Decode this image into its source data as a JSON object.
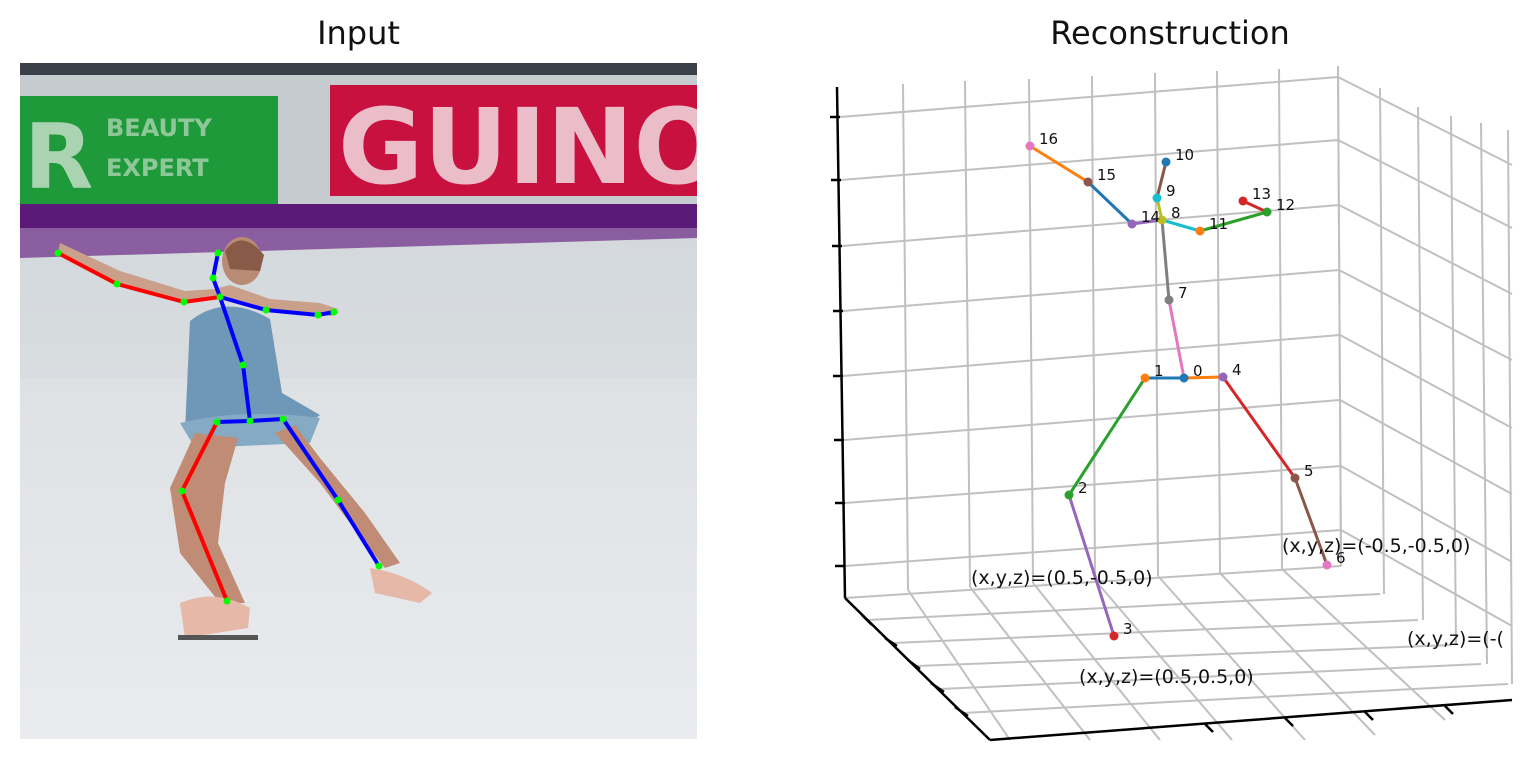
{
  "titles": {
    "left": "Input",
    "right": "Reconstruction"
  },
  "banner": {
    "left_text": "R",
    "left_small": [
      "BEAUTY",
      "EXPERT"
    ],
    "right_text": "GUINO"
  },
  "skeleton2d": {
    "right_color": "#ff0000",
    "left_color": "#0000ff",
    "joint_color": "#00ff00"
  },
  "reconstruction": {
    "joints": [
      {
        "id": "0",
        "color": "#1f77b4"
      },
      {
        "id": "1",
        "color": "#ff7f0e"
      },
      {
        "id": "2",
        "color": "#2ca02c"
      },
      {
        "id": "3",
        "color": "#d62728"
      },
      {
        "id": "4",
        "color": "#9467bd"
      },
      {
        "id": "5",
        "color": "#8c564b"
      },
      {
        "id": "6",
        "color": "#e377c2"
      },
      {
        "id": "7",
        "color": "#7f7f7f"
      },
      {
        "id": "8",
        "color": "#bcbd22"
      },
      {
        "id": "9",
        "color": "#17becf"
      },
      {
        "id": "10",
        "color": "#1f77b4"
      },
      {
        "id": "11",
        "color": "#ff7f0e"
      },
      {
        "id": "12",
        "color": "#2ca02c"
      },
      {
        "id": "13",
        "color": "#d62728"
      },
      {
        "id": "14",
        "color": "#9467bd"
      },
      {
        "id": "15",
        "color": "#8c564b"
      },
      {
        "id": "16",
        "color": "#e377c2"
      }
    ],
    "bones": [
      {
        "from": "0",
        "to": "1",
        "color": "#1f77b4"
      },
      {
        "from": "1",
        "to": "2",
        "color": "#2ca02c"
      },
      {
        "from": "2",
        "to": "3",
        "color": "#9467bd"
      },
      {
        "from": "0",
        "to": "4",
        "color": "#ff7f0e"
      },
      {
        "from": "4",
        "to": "5",
        "color": "#d62728"
      },
      {
        "from": "5",
        "to": "6",
        "color": "#8c564b"
      },
      {
        "from": "0",
        "to": "7",
        "color": "#e377c2"
      },
      {
        "from": "7",
        "to": "8",
        "color": "#7f7f7f"
      },
      {
        "from": "8",
        "to": "9",
        "color": "#bcbd22"
      },
      {
        "from": "9",
        "to": "10",
        "color": "#8c564b"
      },
      {
        "from": "8",
        "to": "11",
        "color": "#17becf"
      },
      {
        "from": "11",
        "to": "12",
        "color": "#2ca02c"
      },
      {
        "from": "12",
        "to": "13",
        "color": "#d62728"
      },
      {
        "from": "8",
        "to": "14",
        "color": "#9467bd"
      },
      {
        "from": "14",
        "to": "15",
        "color": "#1f77b4"
      },
      {
        "from": "15",
        "to": "16",
        "color": "#ff7f0e"
      }
    ],
    "annotations": [
      "(x,y,z)=(0.5,-0.5,0)",
      "(x,y,z)=(-0.5,-0.5,0)",
      "(x,y,z)=(0.5,0.5,0)",
      "(x,y,z)=(-("
    ]
  }
}
